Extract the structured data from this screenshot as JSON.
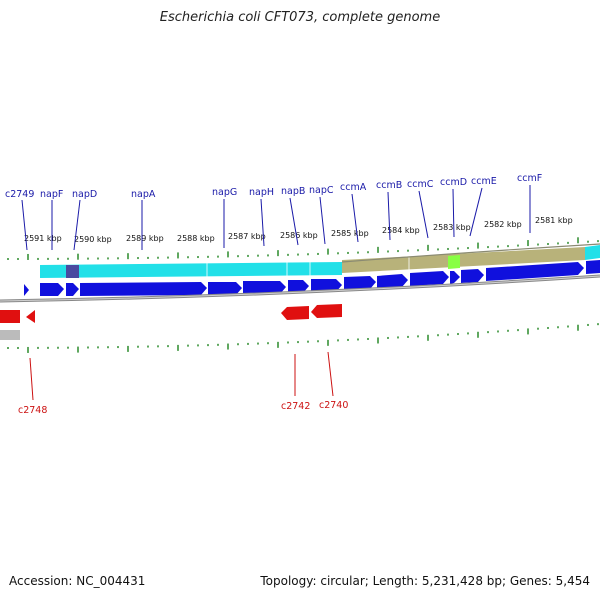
{
  "title": "Escherichia coli CFT073, complete genome",
  "footer": {
    "accession": "Accession: NC_004431",
    "summary": "Topology: circular; Length: 5,231,428 bp; Genes: 5,454"
  },
  "colors": {
    "forward_gene": "#1010dd",
    "reverse_gene": "#e01010",
    "forward_label": "#1a1aa8",
    "reverse_label": "#cc1111",
    "tick": "#2a8a2a",
    "band_cyan": "#22e0e8",
    "band_olive": "#b8b27a",
    "band_lime": "#88ff44",
    "band_navy": "#4a4aa0",
    "backbone": "#888888"
  },
  "kbp_labels": [
    "2591 kbp",
    "2590 kbp",
    "2589 kbp",
    "2588 kbp",
    "2587 kbp",
    "2586 kbp",
    "2585 kbp",
    "2584 kbp",
    "2583 kbp",
    "2582 kbp",
    "2581 kbp"
  ],
  "forward_gene_labels": [
    "c2749",
    "napF",
    "napD",
    "napA",
    "napG",
    "napH",
    "napB",
    "napC",
    "ccmA",
    "ccmB",
    "ccmC",
    "ccmD",
    "ccmE",
    "ccmF"
  ],
  "reverse_gene_labels": [
    "c2748",
    "c2742",
    "c2740"
  ]
}
